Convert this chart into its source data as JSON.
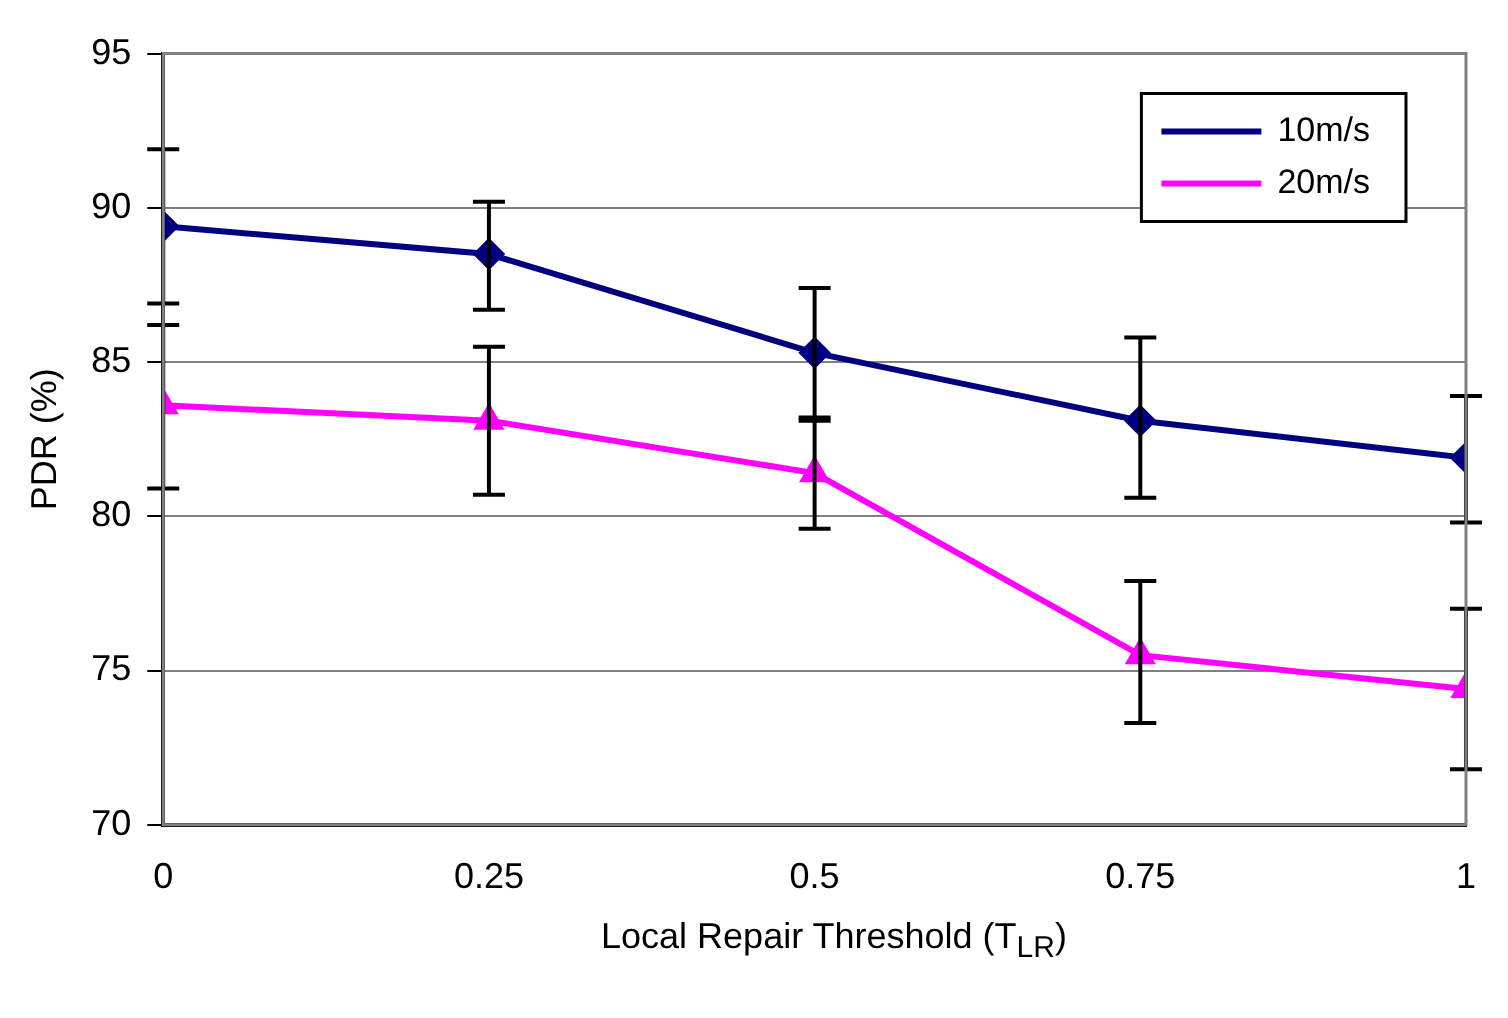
{
  "chart_data": {
    "type": "line",
    "xlabel": "Local Repair Threshold (T$_{LR}$)",
    "ylabel": "PDR (%)",
    "x": [
      0,
      0.25,
      0.5,
      0.75,
      1
    ],
    "series": [
      {
        "name": "10m/s",
        "color": "#000080",
        "marker": "diamond",
        "values": [
          89.4,
          88.5,
          85.3,
          83.1,
          81.9
        ],
        "errors": [
          [
            86.9,
            91.9
          ],
          [
            86.7,
            90.2
          ],
          [
            83.1,
            87.4
          ],
          [
            80.6,
            85.8
          ],
          [
            79.8,
            83.9
          ]
        ]
      },
      {
        "name": "20m/s",
        "color": "#ff00ff",
        "marker": "triangle",
        "values": [
          83.6,
          83.1,
          81.4,
          75.5,
          74.4
        ],
        "errors": [
          [
            80.9,
            86.2
          ],
          [
            80.7,
            85.5
          ],
          [
            79.6,
            83.2
          ],
          [
            73.3,
            77.9
          ],
          [
            71.8,
            77.0
          ]
        ]
      }
    ],
    "xlim": [
      0,
      1
    ],
    "xticks": [
      0,
      0.25,
      0.5,
      0.75,
      1
    ],
    "ylim": [
      70,
      95
    ],
    "yticks": [
      70,
      75,
      80,
      85,
      90,
      95
    ],
    "grid": "y",
    "legend": "top right",
    "line_style": "solid"
  }
}
